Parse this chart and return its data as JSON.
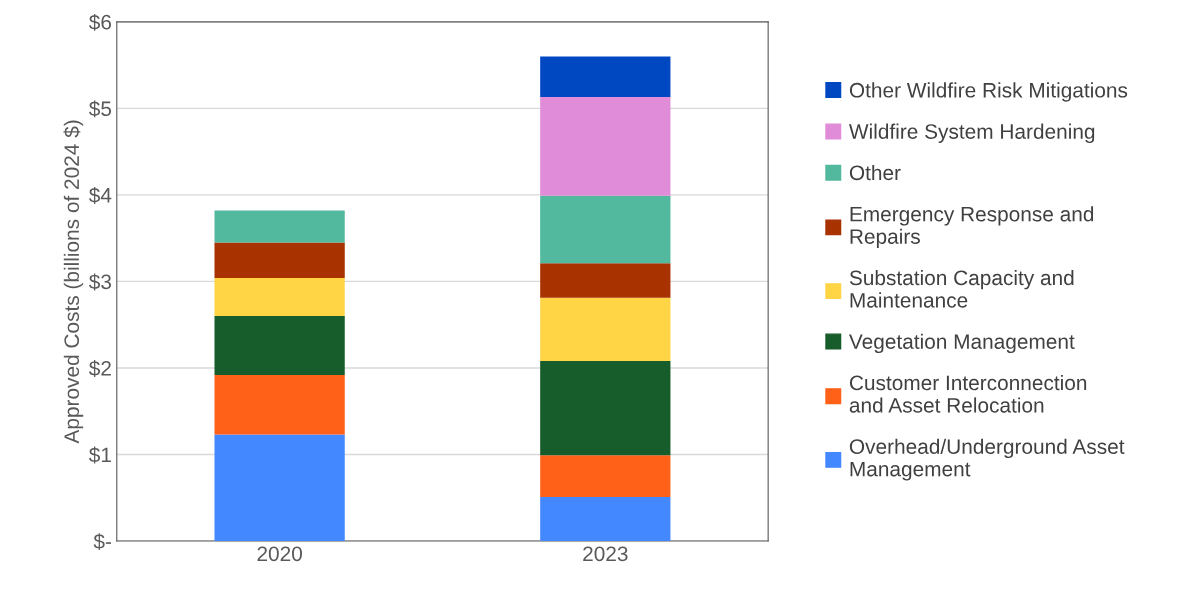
{
  "chart_data": {
    "type": "bar",
    "stacked": true,
    "ylabel": "Approved Costs (billions of 2024 $)",
    "categories": [
      "2020",
      "2023"
    ],
    "series": [
      {
        "name": "Overhead/Underground Asset\nManagement",
        "color": "#4488ff",
        "values": [
          1.23,
          0.51
        ]
      },
      {
        "name": "Customer Interconnection\nand Asset Relocation",
        "color": "#ff6119",
        "values": [
          0.69,
          0.48
        ]
      },
      {
        "name": "Vegetation Management",
        "color": "#175c2b",
        "values": [
          0.68,
          1.09
        ]
      },
      {
        "name": "Substation Capacity and\nMaintenance",
        "color": "#ffd545",
        "values": [
          0.44,
          0.73
        ]
      },
      {
        "name": "Emergency Response and\nRepairs",
        "color": "#a83200",
        "values": [
          0.41,
          0.4
        ]
      },
      {
        "name": "Other",
        "color": "#52b89e",
        "values": [
          0.37,
          0.78
        ]
      },
      {
        "name": "Wildfire System Hardening",
        "color": "#e08cd8",
        "values": [
          null,
          1.14
        ]
      },
      {
        "name": "Other Wildfire Risk Mitigations",
        "color": "#0047c2",
        "values": [
          null,
          0.47
        ]
      }
    ],
    "ylim": [
      0,
      6
    ],
    "yticks": [
      {
        "value": 0,
        "label": "$-"
      },
      {
        "value": 1,
        "label": "$1"
      },
      {
        "value": 2,
        "label": "$2"
      },
      {
        "value": 3,
        "label": "$3"
      },
      {
        "value": 4,
        "label": "$4"
      },
      {
        "value": 5,
        "label": "$5"
      },
      {
        "value": 6,
        "label": "$6"
      }
    ],
    "grid": "y",
    "legend": "right"
  }
}
